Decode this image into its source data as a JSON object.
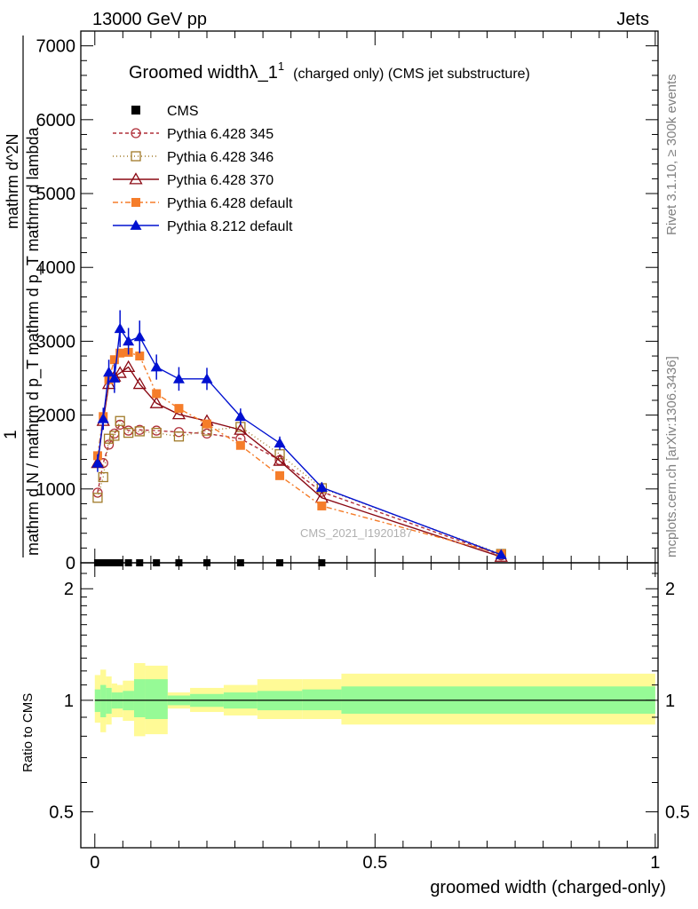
{
  "header": {
    "left": "13000 GeV pp",
    "right": "Jets"
  },
  "side": {
    "right_top": "Rivet 3.1.10, ≥ 300k events",
    "right_bottom": "mcplots.cern.ch [arXiv:1306.3436]"
  },
  "watermark": "CMS_2021_I1920187",
  "colors": {
    "cms": "#000000",
    "p345": "#b0303a",
    "p346": "#a07a28",
    "p370": "#8b0a14",
    "p6def": "#f57d2a",
    "p8def": "#0010d0",
    "band_outer": "#fffa96",
    "band_inner": "#96fa96"
  },
  "chart_data": [
    {
      "type": "line",
      "title": "Groomed widthλ_1",
      "title_sup": "1",
      "title_suffix": "(charged only) (CMS jet substructure)",
      "ylabel_top": "1",
      "ylabel_den": "mathrm d N / mathrm d p_T mathrm d p_T mathrm d lambda",
      "ylabel_num": "mathrm d^2N",
      "xlim": [
        -0.025,
        1.005
      ],
      "ylim": [
        0,
        7200
      ],
      "yticks": [
        {
          "v": 0,
          "label": "0"
        },
        {
          "v": 1000,
          "label": "1000"
        },
        {
          "v": 2000,
          "label": "2000"
        },
        {
          "v": 3000,
          "label": "3000"
        },
        {
          "v": 4000,
          "label": "4000"
        },
        {
          "v": 5000,
          "label": "5000"
        },
        {
          "v": 6000,
          "label": "6000"
        },
        {
          "v": 7000,
          "label": "7000"
        }
      ],
      "series": [
        {
          "name": "CMS",
          "key": "cms",
          "marker": "square-filled",
          "dash": "none",
          "x": [
            0.005,
            0.015,
            0.025,
            0.035,
            0.045,
            0.06,
            0.08,
            0.11,
            0.15,
            0.2,
            0.26,
            0.33,
            0.405
          ],
          "y": [
            0,
            0,
            0,
            0,
            0,
            0,
            0,
            0,
            0,
            0,
            0,
            0,
            0
          ]
        },
        {
          "name": "Pythia 6.428 345",
          "key": "p345",
          "marker": "circle-open",
          "dash": "4,3",
          "x": [
            0.005,
            0.015,
            0.025,
            0.035,
            0.045,
            0.06,
            0.08,
            0.11,
            0.15,
            0.2,
            0.26,
            0.33,
            0.405,
            0.725
          ],
          "y": [
            950,
            1350,
            1600,
            1750,
            1870,
            1790,
            1800,
            1790,
            1770,
            1750,
            1680,
            1390,
            960,
            100
          ]
        },
        {
          "name": "Pythia 6.428 346",
          "key": "p346",
          "marker": "square-open",
          "dash": "1,3",
          "x": [
            0.005,
            0.015,
            0.025,
            0.035,
            0.045,
            0.06,
            0.08,
            0.11,
            0.15,
            0.2,
            0.26,
            0.33,
            0.405,
            0.725
          ],
          "y": [
            880,
            1160,
            1680,
            1720,
            1920,
            1760,
            1780,
            1760,
            1710,
            1790,
            1840,
            1470,
            1010,
            120
          ]
        },
        {
          "name": "Pythia 6.428 370",
          "key": "p370",
          "marker": "triangle-open",
          "dash": "none",
          "x": [
            0.005,
            0.015,
            0.025,
            0.035,
            0.045,
            0.06,
            0.08,
            0.11,
            0.15,
            0.2,
            0.26,
            0.33,
            0.405,
            0.725
          ],
          "y": [
            1350,
            1920,
            2420,
            2520,
            2570,
            2650,
            2420,
            2160,
            2010,
            1920,
            1800,
            1380,
            880,
            80
          ]
        },
        {
          "name": "Pythia 6.428 default",
          "key": "p6def",
          "marker": "square-filled",
          "dash": "6,3,2,3",
          "x": [
            0.005,
            0.015,
            0.025,
            0.035,
            0.045,
            0.06,
            0.08,
            0.11,
            0.15,
            0.2,
            0.26,
            0.33,
            0.405,
            0.725
          ],
          "y": [
            1450,
            1980,
            2480,
            2750,
            2840,
            2850,
            2800,
            2290,
            2090,
            1880,
            1590,
            1180,
            770,
            120
          ]
        },
        {
          "name": "Pythia 8.212 default",
          "key": "p8def",
          "marker": "triangle-filled",
          "dash": "none",
          "x": [
            0.005,
            0.015,
            0.025,
            0.035,
            0.045,
            0.06,
            0.08,
            0.11,
            0.15,
            0.2,
            0.26,
            0.33,
            0.405,
            0.725
          ],
          "y": [
            1350,
            1950,
            2580,
            2500,
            3170,
            3000,
            3060,
            2650,
            2490,
            2490,
            1980,
            1620,
            1020,
            110
          ],
          "err": [
            120,
            150,
            170,
            200,
            250,
            180,
            220,
            170,
            160,
            150,
            110,
            90,
            70,
            30
          ]
        }
      ]
    },
    {
      "type": "area",
      "ylabel": "Ratio to CMS",
      "xlabel": "groomed width (charged-only)",
      "xlim": [
        -0.025,
        1.005
      ],
      "ylim": [
        0.4,
        2.35
      ],
      "scale": "log",
      "yticks_left": [
        {
          "v": 0.5,
          "label": "0.5"
        },
        {
          "v": 1,
          "label": "1"
        },
        {
          "v": 2,
          "label": "2"
        }
      ],
      "yticks_right": [
        {
          "v": 0.5,
          "label": "0.5"
        },
        {
          "v": 1,
          "label": "1"
        },
        {
          "v": 2,
          "label": "2"
        }
      ],
      "xticks": [
        {
          "v": 0,
          "label": "0"
        },
        {
          "v": 0.5,
          "label": "0.5"
        },
        {
          "v": 1,
          "label": "1"
        }
      ],
      "reference_line": 1,
      "bins": [
        {
          "x0": 0.0,
          "x1": 0.01,
          "inner": [
            0.93,
            1.07
          ],
          "outer": [
            0.87,
            1.17
          ]
        },
        {
          "x0": 0.01,
          "x1": 0.02,
          "inner": [
            0.9,
            1.1
          ],
          "outer": [
            0.82,
            1.21
          ]
        },
        {
          "x0": 0.02,
          "x1": 0.03,
          "inner": [
            0.92,
            1.08
          ],
          "outer": [
            0.86,
            1.16
          ]
        },
        {
          "x0": 0.03,
          "x1": 0.04,
          "inner": [
            0.95,
            1.05
          ],
          "outer": [
            0.9,
            1.11
          ]
        },
        {
          "x0": 0.04,
          "x1": 0.05,
          "inner": [
            0.95,
            1.05
          ],
          "outer": [
            0.9,
            1.1
          ]
        },
        {
          "x0": 0.05,
          "x1": 0.07,
          "inner": [
            0.94,
            1.06
          ],
          "outer": [
            0.88,
            1.13
          ]
        },
        {
          "x0": 0.07,
          "x1": 0.09,
          "inner": [
            0.9,
            1.14
          ],
          "outer": [
            0.8,
            1.26
          ]
        },
        {
          "x0": 0.09,
          "x1": 0.13,
          "inner": [
            0.89,
            1.14
          ],
          "outer": [
            0.81,
            1.24
          ]
        },
        {
          "x0": 0.13,
          "x1": 0.17,
          "inner": [
            0.97,
            1.03
          ],
          "outer": [
            0.95,
            1.05
          ]
        },
        {
          "x0": 0.17,
          "x1": 0.23,
          "inner": [
            0.96,
            1.04
          ],
          "outer": [
            0.93,
            1.08
          ]
        },
        {
          "x0": 0.23,
          "x1": 0.29,
          "inner": [
            0.95,
            1.05
          ],
          "outer": [
            0.91,
            1.1
          ]
        },
        {
          "x0": 0.29,
          "x1": 0.37,
          "inner": [
            0.94,
            1.06
          ],
          "outer": [
            0.89,
            1.14
          ]
        },
        {
          "x0": 0.37,
          "x1": 0.44,
          "inner": [
            0.94,
            1.07
          ],
          "outer": [
            0.89,
            1.14
          ]
        },
        {
          "x0": 0.44,
          "x1": 1.0,
          "inner": [
            0.92,
            1.09
          ],
          "outer": [
            0.86,
            1.18
          ]
        }
      ]
    }
  ]
}
